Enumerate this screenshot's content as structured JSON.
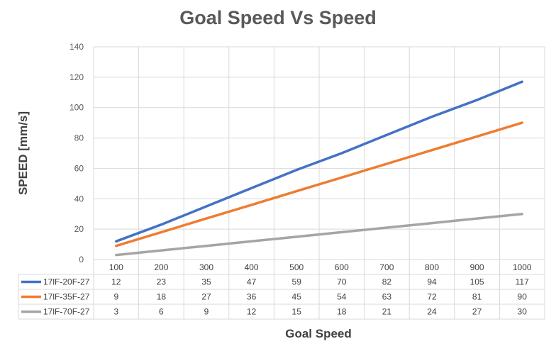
{
  "chart_data": {
    "type": "line",
    "title": "Goal Speed Vs Speed",
    "xlabel": "Goal Speed",
    "ylabel": "SPEED [mm/s]",
    "ylim": [
      0,
      140
    ],
    "yticks": [
      0,
      20,
      40,
      60,
      80,
      100,
      120,
      140
    ],
    "categories": [
      "100",
      "200",
      "300",
      "400",
      "500",
      "600",
      "700",
      "800",
      "900",
      "1000"
    ],
    "grid": true,
    "legend": "data-table",
    "series": [
      {
        "name": "17lF-20F-27",
        "color": "#4472C4",
        "values": [
          12,
          23,
          35,
          47,
          59,
          70,
          82,
          94,
          105,
          117
        ]
      },
      {
        "name": "17lF-35F-27",
        "color": "#ED7D31",
        "values": [
          9,
          18,
          27,
          36,
          45,
          54,
          63,
          72,
          81,
          90
        ]
      },
      {
        "name": "17lF-70F-27",
        "color": "#A5A5A5",
        "values": [
          3,
          6,
          9,
          12,
          15,
          18,
          21,
          24,
          27,
          30
        ]
      }
    ]
  }
}
